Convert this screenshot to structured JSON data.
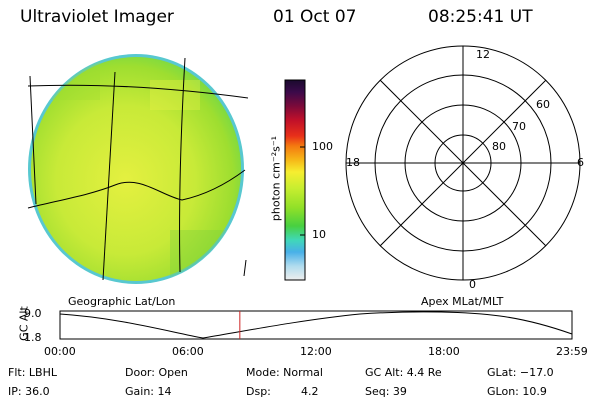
{
  "header": {
    "title": "Ultraviolet Imager",
    "date": "01 Oct 07",
    "time": "08:25:41 UT"
  },
  "colorbar": {
    "unit_label": "photon cm⁻²s⁻¹",
    "ticks": [
      "100",
      "10"
    ],
    "colors": [
      "#1a0a2e",
      "#3b0a4a",
      "#7a0a3a",
      "#c0102a",
      "#e8301a",
      "#f47a10",
      "#f6b818",
      "#f6ee30",
      "#c8ee30",
      "#90e028",
      "#48d040",
      "#40d8b8",
      "#48b0e8",
      "#b0dcee",
      "#eeeeee"
    ]
  },
  "geo_panel": {
    "label": "Geographic Lat/Lon"
  },
  "polar_panel": {
    "label": "Apex MLat/MLT",
    "mlt_labels": {
      "top": "12",
      "right": "6",
      "bottom": "0",
      "left": "18"
    },
    "lat_labels": [
      "60",
      "70",
      "80"
    ]
  },
  "altitude_plot": {
    "ylabel": "GC Alt",
    "ymax_label": "9.0",
    "ymin_label": "1.8",
    "x_ticks": [
      "00:00",
      "06:00",
      "12:00",
      "18:00",
      "23:59"
    ],
    "current_time_hours": 8.43,
    "line_color": "#cc2222"
  },
  "status": {
    "row1": {
      "flt": "Flt: LBHL",
      "door": "Door: Open",
      "mode": "Mode: Normal",
      "gcalt": "GC Alt: 4.4 Re",
      "glat": "GLat: −17.0"
    },
    "row2": {
      "ip": "IP: 36.0",
      "gain": "Gain: 14",
      "dsp_label": "Dsp:",
      "dsp_value": "4.2",
      "seq": "Seq: 39",
      "glon": "GLon:  10.9"
    }
  }
}
